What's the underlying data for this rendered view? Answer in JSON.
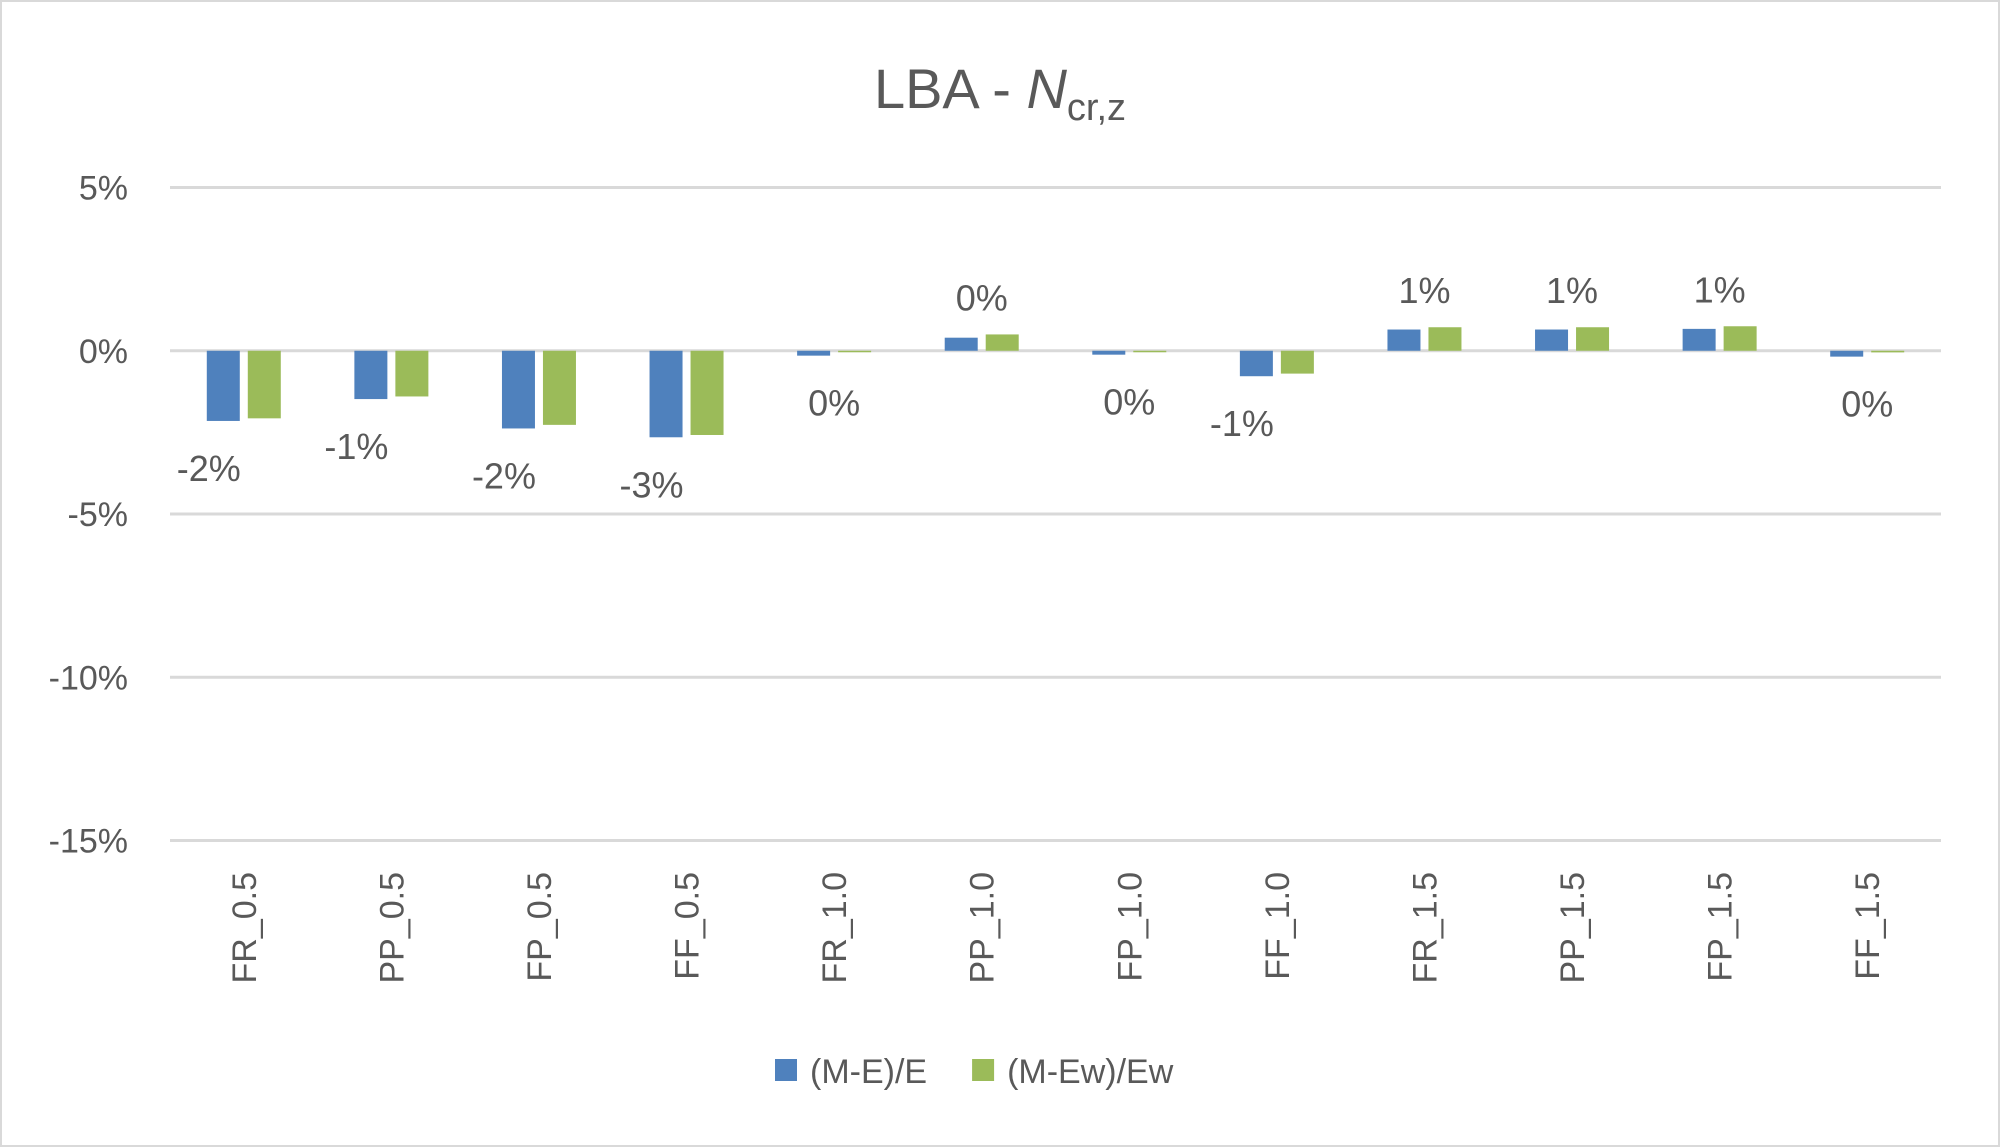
{
  "chart_data": {
    "type": "bar",
    "title": "LBA - ",
    "title_italic": "N",
    "title_subscript": "cr,z",
    "categories": [
      "FR_0.5",
      "PP_0.5",
      "FP_0.5",
      "FF_0.5",
      "FR_1.0",
      "PP_1.0",
      "FP_1.0",
      "FF_1.0",
      "FR_1.5",
      "PP_1.5",
      "FP_1.5",
      "FF_1.5"
    ],
    "series": [
      {
        "name": "(M-E)/E",
        "color": "#4f81bd",
        "values": [
          -2.15,
          -1.48,
          -2.38,
          -2.65,
          -0.15,
          0.4,
          -0.12,
          -0.78,
          0.65,
          0.65,
          0.67,
          -0.18
        ]
      },
      {
        "name": "(M-Ew)/Ew",
        "color": "#9bbb59",
        "values": [
          -2.07,
          -1.4,
          -2.27,
          -2.58,
          -0.03,
          0.5,
          -0.02,
          -0.7,
          0.72,
          0.72,
          0.75,
          -0.05
        ]
      }
    ],
    "data_labels": [
      "-2%",
      "-1%",
      "-2%",
      "-3%",
      "0%",
      "0%",
      "0%",
      "-1%",
      "1%",
      "1%",
      "1%",
      "0%"
    ],
    "yticks": [
      5,
      0,
      -5,
      -10,
      -15
    ],
    "ytick_labels": [
      "5%",
      "0%",
      "-5%",
      "-10%",
      "-15%"
    ],
    "ylim": [
      -15,
      5
    ],
    "unit": "%",
    "grid": true,
    "legend_position": "bottom",
    "xlabel": "",
    "ylabel": ""
  }
}
